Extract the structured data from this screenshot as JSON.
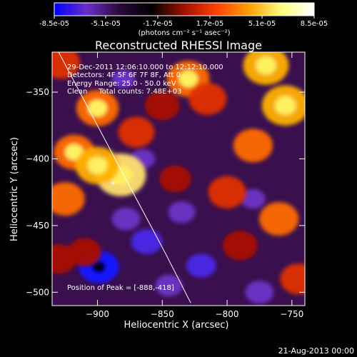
{
  "colorbar": {
    "tick_labels": [
      "-8.5e-05",
      "-5.1e-05",
      "-1.7e-05",
      "1.7e-05",
      "5.1e-05",
      "8.5e-05"
    ],
    "units_label": "(photons cm⁻² s⁻¹ asec⁻²)"
  },
  "chart_data": {
    "type": "heatmap",
    "title": "Reconstructed RHESSI Image",
    "xlabel": "Heliocentric X (arcsec)",
    "ylabel": "Heliocentric Y (arcsec)",
    "xlim": [
      -935,
      -740
    ],
    "ylim": [
      -510,
      -320
    ],
    "x_ticks": [
      -900,
      -850,
      -800,
      -750
    ],
    "x_tick_labels": [
      "-900",
      "-850",
      "-800",
      "-750"
    ],
    "y_ticks": [
      -350,
      -400,
      -450,
      -500
    ],
    "y_tick_labels": [
      "-350",
      "-400",
      "-450",
      "-500"
    ],
    "color_range": [
      -8.5e-05,
      8.5e-05
    ],
    "colors": {
      "colorbar_stops": [
        "#0000ff",
        "#6a2fc8",
        "#2a0a3a",
        "#000000",
        "#a01000",
        "#ff4000",
        "#ffa000",
        "#ffff80",
        "#ffffff"
      ],
      "plot_background": "#3a0f4e",
      "text": "#ffffff"
    },
    "hot_spots": [
      {
        "x": -928,
        "y": -328,
        "level": 0.55
      },
      {
        "x": -900,
        "y": -362,
        "level": 0.7
      },
      {
        "x": -918,
        "y": -395,
        "level": 0.65
      },
      {
        "x": -882,
        "y": -412,
        "level": 0.95
      },
      {
        "x": -900,
        "y": -405,
        "level": 0.75
      },
      {
        "x": -925,
        "y": -430,
        "level": 0.6
      },
      {
        "x": -870,
        "y": -380,
        "level": 0.5
      },
      {
        "x": -830,
        "y": -340,
        "level": 0.7
      },
      {
        "x": -815,
        "y": -355,
        "level": 0.55
      },
      {
        "x": -850,
        "y": -360,
        "level": 0.45
      },
      {
        "x": -770,
        "y": -330,
        "level": 0.8
      },
      {
        "x": -755,
        "y": -360,
        "level": 0.85
      },
      {
        "x": -780,
        "y": -390,
        "level": 0.6
      },
      {
        "x": -800,
        "y": -425,
        "level": 0.55
      },
      {
        "x": -760,
        "y": -445,
        "level": 0.6
      },
      {
        "x": -745,
        "y": -490,
        "level": 0.5
      },
      {
        "x": -790,
        "y": -465,
        "level": 0.45
      },
      {
        "x": -930,
        "y": -475,
        "level": 0.45
      },
      {
        "x": -910,
        "y": -470,
        "level": 0.4
      },
      {
        "x": -840,
        "y": -415,
        "level": 0.35
      }
    ],
    "cold_spots": [
      {
        "x": -899,
        "y": -481,
        "level": -0.95
      },
      {
        "x": -862,
        "y": -462,
        "level": -0.6
      },
      {
        "x": -878,
        "y": -445,
        "level": -0.5
      },
      {
        "x": -820,
        "y": -480,
        "level": -0.55
      },
      {
        "x": -845,
        "y": -495,
        "level": -0.45
      },
      {
        "x": -775,
        "y": -500,
        "level": -0.5
      },
      {
        "x": -835,
        "y": -440,
        "level": -0.45
      },
      {
        "x": -780,
        "y": -430,
        "level": -0.35
      },
      {
        "x": -865,
        "y": -400,
        "level": -0.35
      },
      {
        "x": -880,
        "y": -340,
        "level": -0.3
      }
    ],
    "limb_line": [
      {
        "x": -930,
        "y": -320
      },
      {
        "x": -900,
        "y": -375
      },
      {
        "x": -870,
        "y": -430
      },
      {
        "x": -848,
        "y": -470
      },
      {
        "x": -828,
        "y": -508
      }
    ],
    "info_lines": [
      "29-Dec-2011 12:06:10.000 to 12:12:10.000",
      "Detectors: 4F 5F 6F 7F 8F, Att 0",
      "Energy Range: 25.0 - 50.0 keV",
      "Clean     Total counts: 7.48E+03"
    ],
    "peak_label": "Position of Peak = [-888,-418]",
    "peak": {
      "x": -888,
      "y": -418
    }
  },
  "footer": {
    "timestamp": "21-Aug-2013 00:00"
  }
}
